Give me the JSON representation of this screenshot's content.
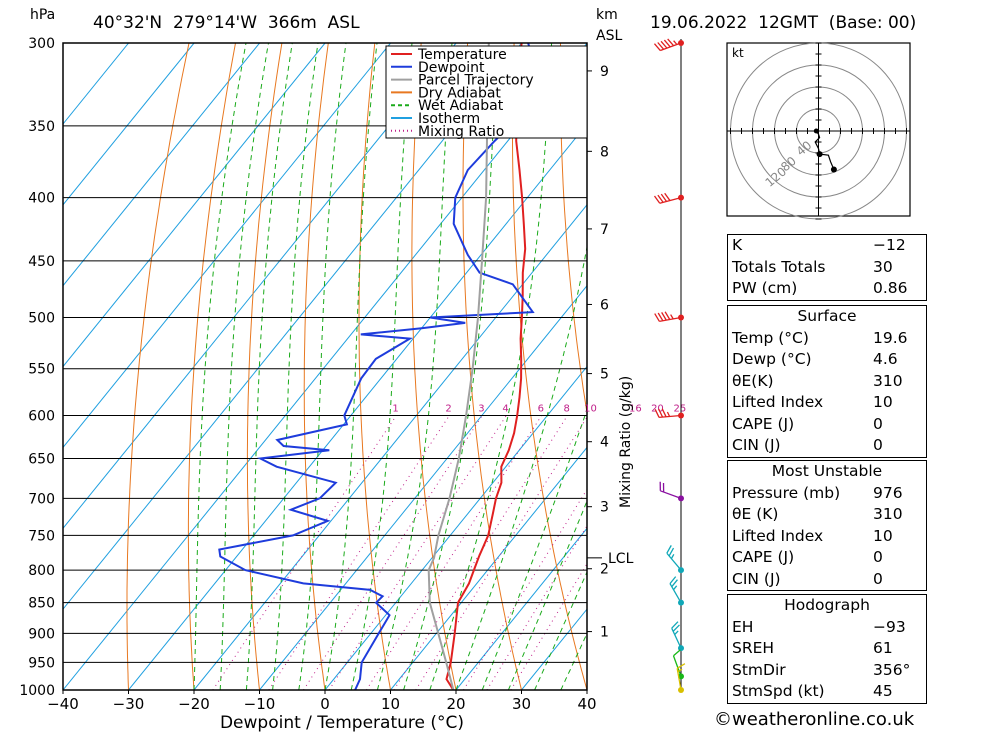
{
  "header": {
    "unit_left": "hPa",
    "location": "40°32'N  279°14'W  366m  ASL",
    "km_label": "km",
    "asl_label": "ASL",
    "datetime": "19.06.2022  12GMT  (Base: 00)"
  },
  "chart_data": {
    "type": "line",
    "title": "40°32'N  279°14'W  366m  ASL",
    "xlabel": "Dewpoint / Temperature (°C)",
    "ylabel": "hPa",
    "xlim": [
      -40,
      40
    ],
    "ylim": [
      1000,
      300
    ],
    "y_log_scale": true,
    "skew": true,
    "pressure_ticks": [
      300,
      350,
      400,
      450,
      500,
      550,
      600,
      650,
      700,
      750,
      800,
      850,
      900,
      950,
      1000
    ],
    "temperature_ticks": [
      -40,
      -30,
      -20,
      -10,
      0,
      10,
      20,
      30,
      40
    ],
    "temperature_tick_labels": [
      "−40",
      "−30",
      "−20",
      "−10",
      "0",
      "10",
      "20",
      "30",
      "40"
    ],
    "height_ticks": [
      {
        "label": "9",
        "p": 316
      },
      {
        "label": "8",
        "p": 367
      },
      {
        "label": "7",
        "p": 424
      },
      {
        "label": "6",
        "p": 488
      },
      {
        "label": "5",
        "p": 555
      },
      {
        "label": "4",
        "p": 630
      },
      {
        "label": "3",
        "p": 711
      },
      {
        "label": "2",
        "p": 798
      },
      {
        "label": "1",
        "p": 897
      }
    ],
    "lcl": {
      "label": "LCL",
      "p": 782
    },
    "mixing_ratio_label": "Mixing Ratio (g/kg)",
    "mixing_ratios": [
      "1",
      "2",
      "3",
      "4",
      "6",
      "8",
      "10",
      "16",
      "20",
      "25"
    ],
    "legend": [
      "Temperature",
      "Dewpoint",
      "Parcel Trajectory",
      "Dry Adiabat",
      "Wet Adiabat",
      "Isotherm",
      "Mixing Ratio"
    ],
    "legend_position": "top-right",
    "series": [
      {
        "name": "Temperature",
        "points": [
          [
            1000,
            19.6
          ],
          [
            980,
            17.2
          ],
          [
            950,
            15.8
          ],
          [
            900,
            12.8
          ],
          [
            850,
            9.5
          ],
          [
            820,
            8.8
          ],
          [
            800,
            7.9
          ],
          [
            780,
            7.0
          ],
          [
            750,
            5.8
          ],
          [
            720,
            3.8
          ],
          [
            700,
            2.4
          ],
          [
            680,
            1.3
          ],
          [
            660,
            -0.7
          ],
          [
            640,
            -1.6
          ],
          [
            620,
            -2.9
          ],
          [
            600,
            -4.6
          ],
          [
            580,
            -6.5
          ],
          [
            560,
            -8.6
          ],
          [
            540,
            -11.0
          ],
          [
            520,
            -13.6
          ],
          [
            500,
            -16.0
          ],
          [
            480,
            -18.6
          ],
          [
            460,
            -21.4
          ],
          [
            440,
            -24.0
          ],
          [
            420,
            -27.3
          ],
          [
            400,
            -30.8
          ],
          [
            380,
            -34.6
          ],
          [
            360,
            -38.7
          ],
          [
            340,
            -42.4
          ],
          [
            320,
            -46.2
          ],
          [
            300,
            -50.0
          ]
        ]
      },
      {
        "name": "Dewpoint",
        "points": [
          [
            1000,
            4.6
          ],
          [
            980,
            4.0
          ],
          [
            950,
            2.2
          ],
          [
            900,
            1.2
          ],
          [
            870,
            0.6
          ],
          [
            850,
            -3.0
          ],
          [
            840,
            -2.8
          ],
          [
            830,
            -5.5
          ],
          [
            820,
            -16.5
          ],
          [
            800,
            -27.0
          ],
          [
            780,
            -32.5
          ],
          [
            770,
            -33.5
          ],
          [
            750,
            -24.0
          ],
          [
            730,
            -20.5
          ],
          [
            715,
            -27.5
          ],
          [
            700,
            -24.5
          ],
          [
            680,
            -24.0
          ],
          [
            660,
            -35.0
          ],
          [
            650,
            -38.5
          ],
          [
            640,
            -29.0
          ],
          [
            635,
            -36.5
          ],
          [
            628,
            -38.2
          ],
          [
            610,
            -29.5
          ],
          [
            600,
            -31.0
          ],
          [
            560,
            -33.0
          ],
          [
            540,
            -33.2
          ],
          [
            520,
            -30.5
          ],
          [
            516,
            -38.5
          ],
          [
            510,
            -30.0
          ],
          [
            505,
            -24.0
          ],
          [
            500,
            -30.0
          ],
          [
            495,
            -15.0
          ],
          [
            470,
            -21.5
          ],
          [
            460,
            -28.0
          ],
          [
            445,
            -32.0
          ],
          [
            420,
            -38.0
          ],
          [
            400,
            -41.0
          ],
          [
            380,
            -42.5
          ],
          [
            360,
            -42.0
          ],
          [
            350,
            -41.5
          ],
          [
            330,
            -45.5
          ],
          [
            320,
            -47.0
          ],
          [
            310,
            -44.5
          ],
          [
            305,
            -47.5
          ],
          [
            300,
            -49.0
          ]
        ]
      },
      {
        "name": "Parcel Trajectory",
        "points": [
          [
            1000,
            19.6
          ],
          [
            950,
            15.1
          ],
          [
            900,
            10.3
          ],
          [
            850,
            5.2
          ],
          [
            800,
            1.0
          ],
          [
            782,
            0.3
          ],
          [
            750,
            -1.8
          ],
          [
            700,
            -4.7
          ],
          [
            650,
            -8.2
          ],
          [
            600,
            -12.4
          ],
          [
            550,
            -17.2
          ],
          [
            500,
            -22.7
          ],
          [
            450,
            -29.1
          ],
          [
            400,
            -36.3
          ],
          [
            350,
            -45.0
          ],
          [
            300,
            -55.0
          ]
        ]
      }
    ]
  },
  "hodograph": {
    "unit": "kt",
    "ring_labels": [
      "40",
      "80",
      "120"
    ],
    "trace": [
      [
        -0.2,
        0.0
      ],
      [
        0.0,
        -0.3
      ],
      [
        0.1,
        -0.6
      ],
      [
        -0.3,
        -1.0
      ],
      [
        0.0,
        -1.6
      ],
      [
        0.1,
        -2.1
      ],
      [
        0.9,
        -2.2
      ],
      [
        1.1,
        -2.8
      ],
      [
        1.4,
        -3.5
      ]
    ]
  },
  "indices": {
    "rows": [
      {
        "k": "K",
        "v": "−12"
      },
      {
        "k": "Totals Totals",
        "v": "30"
      },
      {
        "k": "PW (cm)",
        "v": "0.86"
      }
    ]
  },
  "surface": {
    "title": "Surface",
    "rows": [
      {
        "k": "Temp (°C)",
        "v": "19.6"
      },
      {
        "k": "Dewp (°C)",
        "v": "4.6"
      },
      {
        "k": "θE(K)",
        "v": "310"
      },
      {
        "k": "Lifted Index",
        "v": "10"
      },
      {
        "k": "CAPE (J)",
        "v": "0"
      },
      {
        "k": "CIN (J)",
        "v": "0"
      }
    ]
  },
  "most_unstable": {
    "title": "Most Unstable",
    "rows": [
      {
        "k": "Pressure (mb)",
        "v": "976"
      },
      {
        "k": "θE (K)",
        "v": "310"
      },
      {
        "k": "Lifted Index",
        "v": "10"
      },
      {
        "k": "CAPE (J)",
        "v": "0"
      },
      {
        "k": "CIN (J)",
        "v": "0"
      }
    ]
  },
  "hodograph_stats": {
    "title": "Hodograph",
    "rows": [
      {
        "k": "EH",
        "v": "−93"
      },
      {
        "k": "SREH",
        "v": "61"
      },
      {
        "k": "StmDir",
        "v": "356°"
      },
      {
        "k": "StmSpd (kt)",
        "v": "45"
      }
    ]
  },
  "footer": "©weatheronline.co.uk",
  "colors": {
    "temperature": "#e02020",
    "dewpoint": "#1e3cdc",
    "parcel": "#a0a0a0",
    "dry_adiabat": "#e87820",
    "wet_adiabat": "#1aaa1a",
    "isotherm": "#20a0e0",
    "mixing_ratio": "#c0208a",
    "wind_red": "#e02020",
    "wind_purple": "#8a10a0",
    "wind_cyan": "#10a8b8",
    "wind_green": "#18b818",
    "wind_yellow": "#d8c000"
  },
  "wind_profile": [
    {
      "p": 300,
      "color": "wind_red",
      "dir": 250,
      "spd": 45
    },
    {
      "p": 400,
      "color": "wind_red",
      "dir": 255,
      "spd": 40
    },
    {
      "p": 500,
      "color": "wind_red",
      "dir": 260,
      "spd": 35
    },
    {
      "p": 600,
      "color": "wind_red",
      "dir": 265,
      "spd": 25
    },
    {
      "p": 700,
      "color": "wind_purple",
      "dir": 290,
      "spd": 20
    },
    {
      "p": 800,
      "color": "wind_cyan",
      "dir": 320,
      "spd": 15
    },
    {
      "p": 850,
      "color": "wind_cyan",
      "dir": 330,
      "spd": 15
    },
    {
      "p": 925,
      "color": "wind_cyan",
      "dir": 335,
      "spd": 15
    },
    {
      "p": 975,
      "color": "wind_green",
      "dir": 340,
      "spd": 10
    },
    {
      "p": 1000,
      "color": "wind_yellow",
      "dir": 350,
      "spd": 5
    }
  ]
}
